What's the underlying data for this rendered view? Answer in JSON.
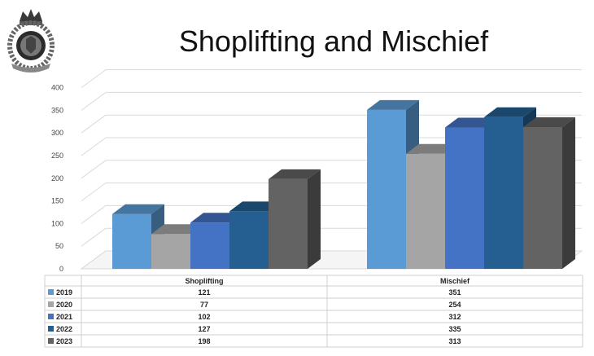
{
  "title": "Shoplifting and Mischief",
  "logo": {
    "name": "rcmp-crest-icon"
  },
  "chart_data": {
    "type": "bar",
    "title": "Shoplifting and Mischief",
    "xlabel": "",
    "ylabel": "",
    "ylim": [
      0,
      400
    ],
    "y_ticks": [
      0,
      50,
      100,
      150,
      200,
      250,
      300,
      350,
      400
    ],
    "grid": true,
    "legend": "data-table",
    "categories": [
      "Shoplifting",
      "Mischief"
    ],
    "series": [
      {
        "name": "2019",
        "values": [
          121,
          351
        ],
        "color": "#5b9bd5"
      },
      {
        "name": "2020",
        "values": [
          77,
          254
        ],
        "color": "#a5a5a5"
      },
      {
        "name": "2021",
        "values": [
          102,
          312
        ],
        "color": "#4472c4"
      },
      {
        "name": "2022",
        "values": [
          127,
          335
        ],
        "color": "#255e91"
      },
      {
        "name": "2023",
        "values": [
          198,
          313
        ],
        "color": "#636363"
      }
    ],
    "table_values": {
      "2019": [
        "121",
        "351"
      ],
      "2020": [
        "77",
        "254"
      ],
      "2021": [
        "102",
        "312"
      ],
      "2022": [
        "127",
        "335"
      ],
      "2023": [
        "198",
        "313"
      ]
    }
  }
}
